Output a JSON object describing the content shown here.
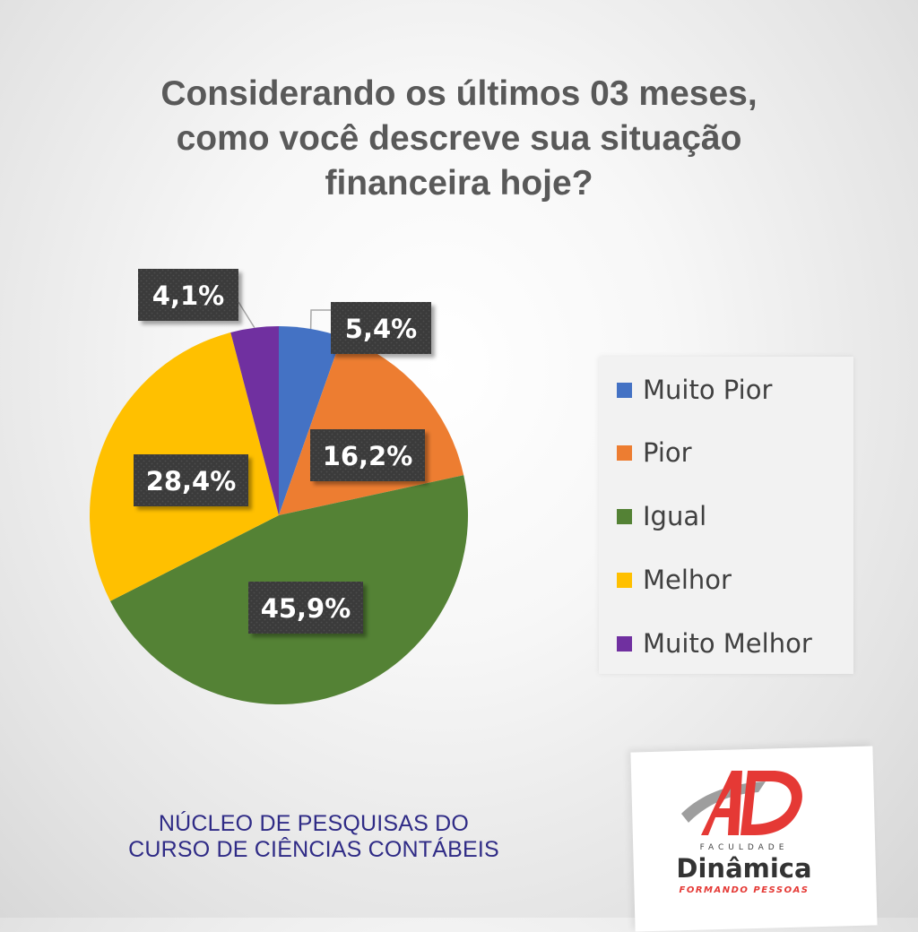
{
  "title_lines": [
    "Considerando os últimos 03 meses,",
    "como você descreve sua situação",
    "financeira hoje?"
  ],
  "chart_data": {
    "type": "pie",
    "title": "Considerando os últimos 03 meses, como você descreve sua situação financeira hoje?",
    "categories": [
      "Muito Pior",
      "Pior",
      "Igual",
      "Melhor",
      "Muito Melhor"
    ],
    "values": [
      5.4,
      16.2,
      45.9,
      28.4,
      4.1
    ],
    "labels": [
      "5,4%",
      "16,2%",
      "45,9%",
      "28,4%",
      "4,1%"
    ],
    "colors": [
      "#4472C4",
      "#ED7D31",
      "#548235",
      "#FFC000",
      "#7030A0"
    ],
    "legend_position": "right"
  },
  "footer": {
    "line1": "NÚCLEO DE PESQUISAS DO",
    "line2": "CURSO DE CIÊNCIAS CONTÁBEIS"
  },
  "logo": {
    "small_text": "FACULDADE",
    "name": "Dinâmica",
    "tagline": "FORMANDO PESSOAS",
    "colors": {
      "red": "#E53935",
      "gray": "#9E9E9E"
    }
  }
}
